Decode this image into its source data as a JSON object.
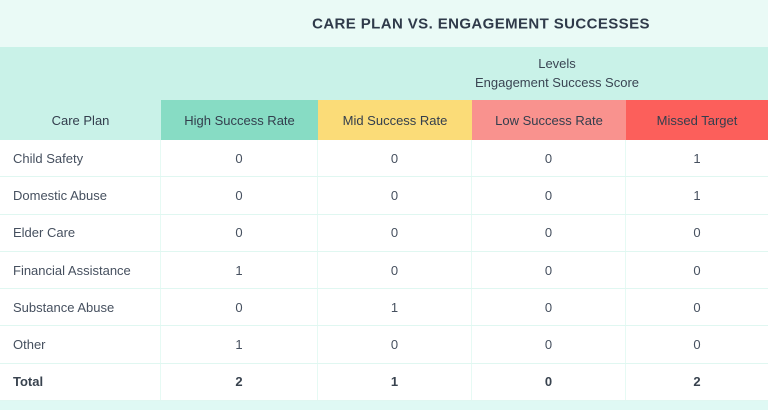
{
  "header": {
    "title": "CARE PLAN VS. ENGAGEMENT SUCCESSES",
    "levels_label": "Levels",
    "score_label": "Engagement Success Score"
  },
  "table": {
    "row_header": "Care Plan",
    "columns": [
      {
        "label": "High Success Rate",
        "color": "#87DCC4"
      },
      {
        "label": "Mid Success Rate",
        "color": "#FBDC78"
      },
      {
        "label": "Low Success Rate",
        "color": "#F9928E"
      },
      {
        "label": "Missed Target",
        "color": "#FC5F5B"
      }
    ],
    "rows": [
      {
        "label": "Child Safety",
        "values": [
          0,
          0,
          0,
          1
        ]
      },
      {
        "label": "Domestic Abuse",
        "values": [
          0,
          0,
          0,
          1
        ]
      },
      {
        "label": "Elder Care",
        "values": [
          0,
          0,
          0,
          0
        ]
      },
      {
        "label": "Financial Assistance",
        "values": [
          1,
          0,
          0,
          0
        ]
      },
      {
        "label": "Substance Abuse",
        "values": [
          0,
          1,
          0,
          0
        ]
      },
      {
        "label": "Other",
        "values": [
          1,
          0,
          0,
          0
        ]
      },
      {
        "label": "Total",
        "values": [
          2,
          1,
          0,
          2
        ]
      }
    ]
  },
  "colors": {
    "title_bar_bg": "#EAFAF6",
    "band_bg": "#C9F2E8",
    "bottom_strip_bg": "#DFF9F4",
    "grid_line": "#E0F7F1",
    "text_dark": "#3A4250"
  },
  "chart_data": {
    "type": "table",
    "title": "CARE PLAN VS. ENGAGEMENT SUCCESSES",
    "group_header": [
      "Levels",
      "Engagement Success Score"
    ],
    "row_header": "Care Plan",
    "columns": [
      "High Success Rate",
      "Mid Success Rate",
      "Low Success Rate",
      "Missed Target"
    ],
    "rows": [
      {
        "care_plan": "Child Safety",
        "high": 0,
        "mid": 0,
        "low": 0,
        "missed": 1
      },
      {
        "care_plan": "Domestic Abuse",
        "high": 0,
        "mid": 0,
        "low": 0,
        "missed": 1
      },
      {
        "care_plan": "Elder Care",
        "high": 0,
        "mid": 0,
        "low": 0,
        "missed": 0
      },
      {
        "care_plan": "Financial Assistance",
        "high": 1,
        "mid": 0,
        "low": 0,
        "missed": 0
      },
      {
        "care_plan": "Substance Abuse",
        "high": 0,
        "mid": 1,
        "low": 0,
        "missed": 0
      },
      {
        "care_plan": "Other",
        "high": 1,
        "mid": 0,
        "low": 0,
        "missed": 0
      }
    ],
    "totals": {
      "care_plan": "Total",
      "high": 2,
      "mid": 1,
      "low": 0,
      "missed": 2
    },
    "column_colors": [
      "#87DCC4",
      "#FBDC78",
      "#F9928E",
      "#FC5F5B"
    ]
  }
}
